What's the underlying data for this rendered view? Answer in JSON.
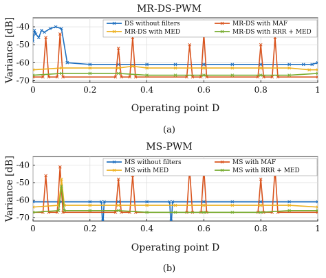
{
  "captions": [
    "(a)",
    "(b)"
  ],
  "chart_data": [
    {
      "type": "line",
      "title": "MR-DS-PWM",
      "xlabel": "Operating point D",
      "ylabel": "Variance [dB]",
      "xlim": [
        0,
        1
      ],
      "ylim": [
        -71,
        -35
      ],
      "xticks": [
        "0",
        "0.2",
        "0.4",
        "0.6",
        "0.8",
        "1"
      ],
      "yticks": [
        "-40",
        "-50",
        "-60",
        "-70"
      ],
      "grid": true,
      "legend_position": "top-right",
      "series": [
        {
          "name": "DS without filters",
          "color": "#1f6fbf",
          "marker": "x",
          "x": [
            0.0,
            0.005,
            0.01,
            0.02,
            0.03,
            0.04,
            0.06,
            0.08,
            0.1,
            0.12,
            0.2,
            0.3,
            0.4,
            0.5,
            0.6,
            0.7,
            0.8,
            0.9,
            0.95,
            0.98,
            1.0
          ],
          "y": [
            -48,
            -42,
            -44,
            -46,
            -42,
            -43,
            -41,
            -40,
            -41,
            -60,
            -61,
            -61,
            -61,
            -61,
            -61,
            -61,
            -61,
            -61,
            -61,
            -61,
            -60
          ]
        },
        {
          "name": "MR-DS with MAF",
          "color": "#d9541e",
          "marker": "x",
          "x": [
            0.0,
            0.035,
            0.045,
            0.055,
            0.085,
            0.095,
            0.105,
            0.29,
            0.3,
            0.31,
            0.34,
            0.35,
            0.36,
            0.54,
            0.55,
            0.56,
            0.59,
            0.6,
            0.61,
            0.79,
            0.8,
            0.81,
            0.84,
            0.85,
            0.86,
            1.0
          ],
          "y": [
            -68,
            -68,
            -46,
            -68,
            -68,
            -44,
            -68,
            -68,
            -52,
            -68,
            -68,
            -46,
            -68,
            -68,
            -50,
            -68,
            -68,
            -44,
            -68,
            -68,
            -50,
            -68,
            -68,
            -46,
            -68,
            -68
          ]
        },
        {
          "name": "MR-DS with MED",
          "color": "#edb120",
          "marker": "x",
          "x": [
            0.0,
            0.1,
            0.2,
            0.3,
            0.35,
            0.4,
            0.5,
            0.6,
            0.7,
            0.8,
            0.9,
            0.97,
            1.0
          ],
          "y": [
            -64,
            -63,
            -63,
            -63,
            -62,
            -63,
            -63,
            -63,
            -63,
            -63,
            -63,
            -64,
            -64
          ]
        },
        {
          "name": "MR-DS with RRR + MED",
          "color": "#77ac30",
          "marker": "x",
          "x": [
            0.0,
            0.1,
            0.2,
            0.3,
            0.4,
            0.5,
            0.6,
            0.7,
            0.8,
            0.9,
            1.0
          ],
          "y": [
            -67,
            -66,
            -66,
            -66,
            -67,
            -67,
            -67,
            -67,
            -67,
            -67,
            -66
          ]
        }
      ]
    },
    {
      "type": "line",
      "title": "MS-PWM",
      "xlabel": "Operating point D",
      "ylabel": "Variance [dB]",
      "xlim": [
        0,
        1
      ],
      "ylim": [
        -72,
        -35
      ],
      "xticks": [
        "0",
        "0.2",
        "0.4",
        "0.6",
        "0.8",
        "1"
      ],
      "yticks": [
        "-40",
        "-50",
        "-60",
        "-70"
      ],
      "grid": true,
      "legend_position": "top-right",
      "series": [
        {
          "name": "MS without filters",
          "color": "#1f6fbf",
          "marker": "x",
          "x": [
            0.0,
            0.1,
            0.2,
            0.24,
            0.245,
            0.25,
            0.3,
            0.4,
            0.48,
            0.485,
            0.49,
            0.6,
            0.7,
            0.8,
            0.9,
            1.0
          ],
          "y": [
            -61,
            -61,
            -61,
            -61,
            -76,
            -61,
            -61,
            -61,
            -61,
            -76,
            -61,
            -61,
            -61,
            -61,
            -61,
            -61
          ]
        },
        {
          "name": "MS with MAF",
          "color": "#d9541e",
          "marker": "x",
          "x": [
            0.0,
            0.035,
            0.045,
            0.055,
            0.085,
            0.095,
            0.105,
            0.29,
            0.3,
            0.31,
            0.34,
            0.35,
            0.36,
            0.54,
            0.55,
            0.56,
            0.59,
            0.6,
            0.61,
            0.79,
            0.8,
            0.81,
            0.84,
            0.85,
            0.86,
            1.0
          ],
          "y": [
            -67,
            -67,
            -46,
            -67,
            -67,
            -41,
            -67,
            -67,
            -48,
            -67,
            -67,
            -46,
            -67,
            -67,
            -42,
            -67,
            -67,
            -42,
            -67,
            -67,
            -48,
            -67,
            -67,
            -42,
            -67,
            -67
          ]
        },
        {
          "name": "MS with MED",
          "color": "#edb120",
          "marker": "x",
          "x": [
            0.0,
            0.09,
            0.1,
            0.11,
            0.2,
            0.3,
            0.4,
            0.5,
            0.6,
            0.7,
            0.8,
            0.9,
            1.0
          ],
          "y": [
            -64,
            -63,
            -48,
            -63,
            -63,
            -63,
            -63,
            -63,
            -63,
            -63,
            -63,
            -63,
            -64
          ]
        },
        {
          "name": "MS with RRR + MED",
          "color": "#77ac30",
          "marker": "x",
          "x": [
            0.0,
            0.09,
            0.1,
            0.11,
            0.2,
            0.3,
            0.4,
            0.5,
            0.6,
            0.7,
            0.8,
            0.9,
            1.0
          ],
          "y": [
            -67,
            -66,
            -52,
            -66,
            -66,
            -66,
            -67,
            -67,
            -67,
            -67,
            -67,
            -66,
            -66
          ]
        }
      ]
    }
  ]
}
